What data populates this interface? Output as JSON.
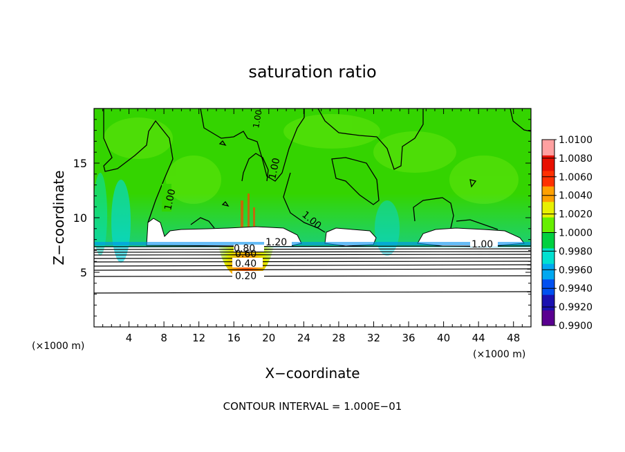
{
  "chart_data": {
    "type": "heatmap",
    "title": "saturation ratio",
    "xlabel": "X−coordinate",
    "ylabel": "Z−coordinate",
    "x_unit": "(×1000 m)",
    "y_unit": "(×1000 m)",
    "xlim": [
      0,
      50
    ],
    "ylim": [
      0,
      20
    ],
    "x_ticks": [
      "4",
      "8",
      "12",
      "16",
      "20",
      "24",
      "28",
      "32",
      "36",
      "40",
      "44",
      "48"
    ],
    "y_ticks": [
      "5",
      "10",
      "15"
    ],
    "colorbar": {
      "range": [
        0.99,
        1.01
      ],
      "labels": [
        "1.0100",
        "1.0080",
        "1.0060",
        "1.0040",
        "1.0020",
        "1.0000",
        "0.9980",
        "0.9960",
        "0.9940",
        "0.9920",
        "0.9900"
      ],
      "colors": [
        "#5a0090",
        "#1a10b0",
        "#0050f0",
        "#00a8f0",
        "#00e0d0",
        "#00d040",
        "#66ee00",
        "#e8f000",
        "#ffa000",
        "#ff3000",
        "#e81000",
        "#ffa0a0"
      ]
    },
    "contour_labels": [
      "1.00",
      "1.00",
      "1.00",
      "1.00",
      "1.00",
      "1.20",
      "0.80",
      "0.60",
      "0.40",
      "0.20"
    ],
    "footer": "CONTOUR INTERVAL = 1.000E−01"
  }
}
